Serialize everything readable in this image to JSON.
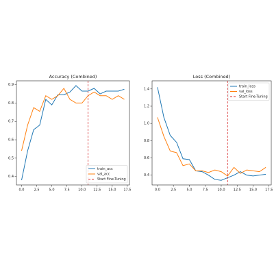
{
  "chart_data": [
    {
      "type": "line",
      "title": "Accuracy (Combined)",
      "x": [
        0,
        1,
        2,
        3,
        4,
        5,
        6,
        7,
        8,
        9,
        10,
        11,
        12,
        13,
        14,
        15,
        16,
        17
      ],
      "series": [
        {
          "name": "train_acc",
          "color": "#1f77b4",
          "values": [
            0.38,
            0.54,
            0.655,
            0.68,
            0.82,
            0.79,
            0.845,
            0.845,
            0.86,
            0.895,
            0.865,
            0.865,
            0.88,
            0.85,
            0.865,
            0.865,
            0.865,
            0.875
          ]
        },
        {
          "name": "val_acc",
          "color": "#ff7f0e",
          "values": [
            0.54,
            0.68,
            0.775,
            0.755,
            0.84,
            0.82,
            0.84,
            0.88,
            0.82,
            0.8,
            0.8,
            0.84,
            0.86,
            0.84,
            0.84,
            0.82,
            0.84,
            0.82
          ]
        }
      ],
      "vline": {
        "x": 11,
        "label": "Start Fine-Tuning",
        "color": "#d62728"
      },
      "xlim": [
        -0.85,
        17.85
      ],
      "ylim": [
        0.354,
        0.921
      ],
      "xticks": [
        {
          "value": 0,
          "label": "0.0"
        },
        2.5,
        {
          "value": 5,
          "label": "5.0"
        },
        7.5,
        {
          "value": 10,
          "label": "10.0"
        },
        12.5,
        {
          "value": 15,
          "label": "15.0"
        },
        17.5
      ],
      "yticks": [
        0.4,
        0.5,
        0.6,
        0.7,
        0.8,
        0.9
      ],
      "legend": "lower right"
    },
    {
      "type": "line",
      "title": "Loss (Combined)",
      "x": [
        0,
        1,
        2,
        3,
        4,
        5,
        6,
        7,
        8,
        9,
        10,
        11,
        12,
        13,
        14,
        15,
        16,
        17
      ],
      "series": [
        {
          "name": "train_loss",
          "color": "#1f77b4",
          "values": [
            1.42,
            1.07,
            0.86,
            0.78,
            0.59,
            0.58,
            0.45,
            0.44,
            0.4,
            0.35,
            0.34,
            0.37,
            0.4,
            0.44,
            0.4,
            0.39,
            0.4,
            0.41
          ]
        },
        {
          "name": "val_loss",
          "color": "#ff7f0e",
          "values": [
            1.07,
            0.85,
            0.68,
            0.66,
            0.51,
            0.53,
            0.45,
            0.45,
            0.43,
            0.46,
            0.44,
            0.39,
            0.49,
            0.42,
            0.46,
            0.45,
            0.44,
            0.49
          ]
        }
      ],
      "vline": {
        "x": 11,
        "label": "Start Fine-Tuning",
        "color": "#d62728"
      },
      "xlim": [
        -0.85,
        17.85
      ],
      "ylim": [
        0.286,
        1.494
      ],
      "xticks": [
        {
          "value": 0,
          "label": "0.0"
        },
        2.5,
        {
          "value": 5,
          "label": "5.0"
        },
        7.5,
        {
          "value": 10,
          "label": "10.0"
        },
        12.5,
        {
          "value": 15,
          "label": "15.0"
        },
        17.5
      ],
      "yticks": [
        0.4,
        0.6,
        0.8,
        {
          "value": 1,
          "label": "1.0"
        },
        1.2,
        1.4
      ],
      "legend": "upper right"
    }
  ]
}
